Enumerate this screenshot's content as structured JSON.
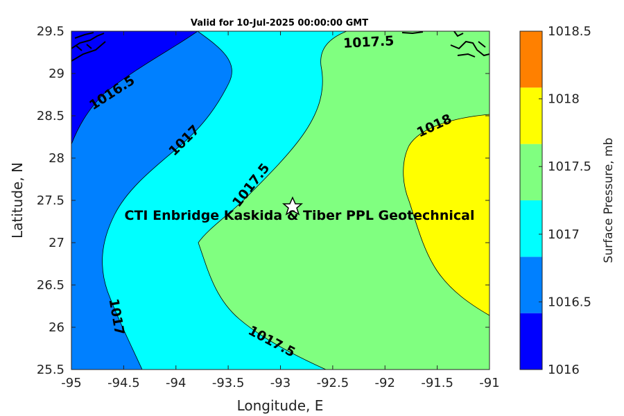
{
  "map": {
    "title": "Valid for 10-Jul-2025 00:00:00 GMT",
    "xlabel": "Longitude, E",
    "ylabel": "Latitude, N",
    "x_ticks": [
      "-95",
      "-94.5",
      "-94",
      "-93.5",
      "-93",
      "-92.5",
      "-92",
      "-91.5",
      "-91"
    ],
    "y_ticks": [
      "29.5",
      "29",
      "28.5",
      "28",
      "27.5",
      "27",
      "26.5",
      "26",
      "25.5"
    ],
    "site_label": "CTI Enbridge  Kaskida & Tiber PPL Geotechnical",
    "contour_labels": [
      "1016.5",
      "1017",
      "1017.5",
      "1018",
      "1017",
      "1017.5",
      "1017.5"
    ],
    "colorbar": {
      "label": "Surface Pressure, mb",
      "ticks": [
        "1018.5",
        "1018",
        "1017.5",
        "1017",
        "1016.5",
        "1016"
      ],
      "colors": [
        "#0000ff",
        "#0080ff",
        "#00ffff",
        "#80ff80",
        "#ffff00",
        "#ff8000"
      ]
    }
  }
}
